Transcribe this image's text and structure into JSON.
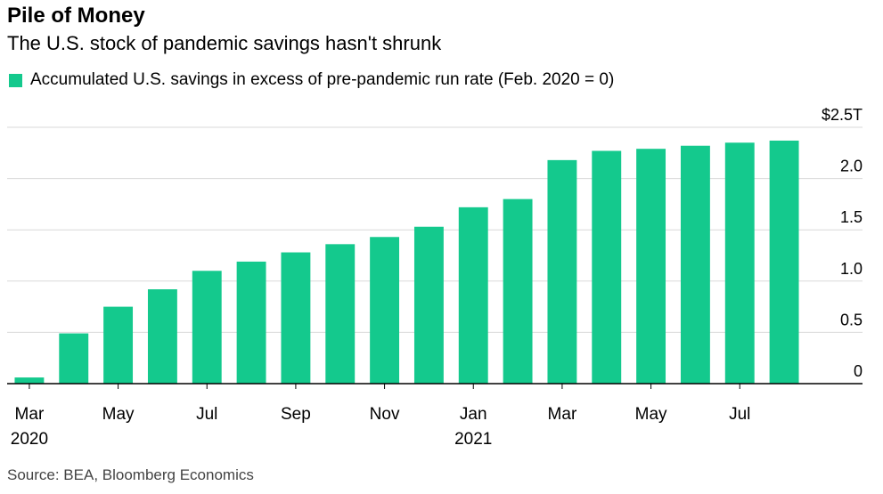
{
  "title": "Pile of Money",
  "subtitle": "The U.S. stock of pandemic savings hasn't shrunk",
  "legend_label": "Accumulated U.S. savings in excess of pre-pandemic run rate (Feb. 2020 = 0)",
  "source": "Source: BEA, Bloomberg Economics",
  "colors": {
    "bar": "#14c98d",
    "gridline": "#d9d9d9",
    "axis": "#000000"
  },
  "chart_data": {
    "type": "bar",
    "categories": [
      "Mar 2020",
      "Apr 2020",
      "May 2020",
      "Jun 2020",
      "Jul 2020",
      "Aug 2020",
      "Sep 2020",
      "Oct 2020",
      "Nov 2020",
      "Dec 2020",
      "Jan 2021",
      "Feb 2021",
      "Mar 2021",
      "Apr 2021",
      "May 2021",
      "Jun 2021",
      "Jul 2021",
      "Aug 2021"
    ],
    "series": [
      {
        "name": "Accumulated U.S. savings in excess of pre-pandemic run rate (Feb. 2020 = 0)",
        "values": [
          0.06,
          0.49,
          0.75,
          0.92,
          1.1,
          1.19,
          1.28,
          1.36,
          1.43,
          1.53,
          1.72,
          1.8,
          2.18,
          2.27,
          2.29,
          2.32,
          2.35,
          2.37
        ]
      }
    ],
    "x_tick_labels": [
      {
        "index": 0,
        "line1": "Mar",
        "line2": "2020"
      },
      {
        "index": 2,
        "line1": "May",
        "line2": ""
      },
      {
        "index": 4,
        "line1": "Jul",
        "line2": ""
      },
      {
        "index": 6,
        "line1": "Sep",
        "line2": ""
      },
      {
        "index": 8,
        "line1": "Nov",
        "line2": ""
      },
      {
        "index": 10,
        "line1": "Jan",
        "line2": "2021"
      },
      {
        "index": 12,
        "line1": "Mar",
        "line2": ""
      },
      {
        "index": 14,
        "line1": "May",
        "line2": ""
      },
      {
        "index": 16,
        "line1": "Jul",
        "line2": ""
      }
    ],
    "y_ticks": [
      {
        "value": 0,
        "label": "0"
      },
      {
        "value": 0.5,
        "label": "0.5"
      },
      {
        "value": 1.0,
        "label": "1.0"
      },
      {
        "value": 1.5,
        "label": "1.5"
      },
      {
        "value": 2.0,
        "label": "2.0"
      },
      {
        "value": 2.5,
        "label": "$2.5T"
      }
    ],
    "ylim": [
      0,
      2.5
    ],
    "y_axis_side": "right",
    "grid": true,
    "legend_position": "top-left",
    "xlabel": "",
    "ylabel": ""
  }
}
